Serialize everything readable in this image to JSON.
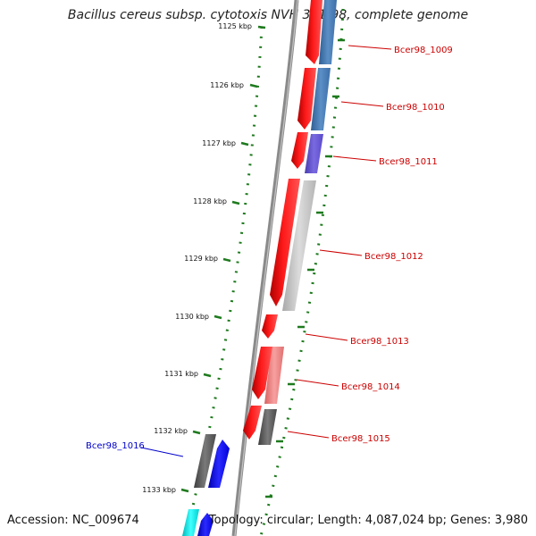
{
  "title": "Bacillus cereus subsp. cytotoxis NVH 391-98, complete genome",
  "footer": {
    "accession": "Accession: NC_009674",
    "topology": "Topology: circular; Length: 4,087,024 bp; Genes: 3,980"
  },
  "ticks": [
    {
      "label": "1125 kbp",
      "faded": true
    },
    {
      "label": "1126 kbp"
    },
    {
      "label": "1127 kbp"
    },
    {
      "label": "1128 kbp"
    },
    {
      "label": "1129 kbp"
    },
    {
      "label": "1130 kbp"
    },
    {
      "label": "1131 kbp"
    },
    {
      "label": "1132 kbp"
    },
    {
      "label": "1133 kbp"
    }
  ],
  "gene_labels": [
    {
      "label": "Bcer98_1009",
      "color": "#cc0000"
    },
    {
      "label": "Bcer98_1010",
      "color": "#cc0000"
    },
    {
      "label": "Bcer98_1011",
      "color": "#cc0000"
    },
    {
      "label": "Bcer98_1012",
      "color": "#cc0000"
    },
    {
      "label": "Bcer98_1013",
      "color": "#cc0000"
    },
    {
      "label": "Bcer98_1014",
      "color": "#cc0000"
    },
    {
      "label": "Bcer98_1015",
      "color": "#cc0000"
    },
    {
      "label": "Bcer98_1016",
      "color": "#0000cc"
    }
  ],
  "colors": {
    "cds": "#ff0000",
    "backbone": "#8a8a8a",
    "tick_marks": "#1e7a1e",
    "steel_blue": "#4a7fb5",
    "slate_blue": "#6a5acd",
    "light_gray": "#c8c8c8",
    "light_red": "#f08080",
    "dark_gray": "#5a5a5a",
    "blue": "#0000ff",
    "cyan": "#00e5e5"
  }
}
